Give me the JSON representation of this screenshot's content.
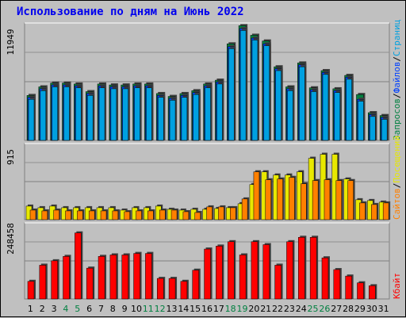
{
  "title": "Использование по дням на Июнь 2022",
  "colors": {
    "visits": "#00a0e0",
    "files": "#0040ff",
    "hits": "#008040",
    "sites": "#ff8000",
    "pages": "#e8e800",
    "kbytes": "#ff0000",
    "weekend_tick": "#008040",
    "normal_tick": "#000000"
  },
  "chart_data": [
    {
      "type": "bar",
      "title": "Использование по дням на Июнь 2022",
      "categories": [
        "1",
        "2",
        "3",
        "4",
        "5",
        "6",
        "7",
        "8",
        "9",
        "10",
        "11",
        "12",
        "13",
        "14",
        "15",
        "16",
        "17",
        "18",
        "19",
        "20",
        "21",
        "22",
        "23",
        "24",
        "25",
        "26",
        "27",
        "28",
        "29",
        "30",
        "31"
      ],
      "ymax_label": "11949",
      "ylim": [
        0,
        11949
      ],
      "legend_placement": "right",
      "legend": [
        "Запросов",
        "/",
        "Файлов",
        "/",
        "Страниц"
      ],
      "series": [
        {
          "name": "Запросов",
          "values": [
            4700,
            5600,
            6000,
            6000,
            5900,
            5100,
            5900,
            5800,
            5800,
            5900,
            5900,
            4900,
            4600,
            4900,
            5200,
            5900,
            6300,
            10100,
            12000,
            11000,
            10400,
            7700,
            5600,
            8100,
            5500,
            7300,
            5400,
            6800,
            4800,
            2900,
            2600
          ]
        },
        {
          "name": "Файлов",
          "values": [
            4500,
            5400,
            5800,
            5800,
            5700,
            4900,
            5700,
            5600,
            5600,
            5700,
            5700,
            4700,
            4400,
            4700,
            5000,
            5700,
            6100,
            9800,
            11700,
            10700,
            10100,
            7500,
            5400,
            7900,
            5300,
            7100,
            5200,
            6600,
            4300,
            2700,
            2400
          ]
        },
        {
          "name": "Страниц",
          "values": [
            4300,
            5200,
            5600,
            5600,
            5500,
            4700,
            5500,
            5400,
            5400,
            5500,
            5500,
            4500,
            4200,
            4500,
            4800,
            5500,
            5900,
            9600,
            11500,
            10500,
            9900,
            7300,
            5200,
            7700,
            5100,
            6900,
            5000,
            6400,
            4100,
            2500,
            2200
          ]
        }
      ]
    },
    {
      "type": "bar",
      "categories": [
        "1",
        "2",
        "3",
        "4",
        "5",
        "6",
        "7",
        "8",
        "9",
        "10",
        "11",
        "12",
        "13",
        "14",
        "15",
        "16",
        "17",
        "18",
        "19",
        "20",
        "21",
        "22",
        "23",
        "24",
        "25",
        "26",
        "27",
        "28",
        "29",
        "30",
        "31"
      ],
      "ymax_label": "915",
      "ylim": [
        0,
        915
      ],
      "legend_placement": "right",
      "legend": [
        "Сайтов",
        "/",
        "Посещений"
      ],
      "series": [
        {
          "name": "Посещений",
          "values": [
            170,
            150,
            170,
            150,
            150,
            150,
            150,
            150,
            120,
            150,
            150,
            170,
            130,
            120,
            130,
            130,
            140,
            150,
            200,
            440,
            600,
            560,
            560,
            600,
            770,
            820,
            820,
            510,
            250,
            240,
            220
          ]
        },
        {
          "name": "Сайтов",
          "values": [
            120,
            110,
            120,
            110,
            110,
            110,
            110,
            110,
            100,
            110,
            110,
            120,
            120,
            100,
            90,
            160,
            160,
            150,
            260,
            600,
            500,
            510,
            530,
            450,
            490,
            500,
            490,
            490,
            210,
            190,
            210
          ]
        }
      ]
    },
    {
      "type": "bar",
      "categories": [
        "1",
        "2",
        "3",
        "4",
        "5",
        "6",
        "7",
        "8",
        "9",
        "10",
        "11",
        "12",
        "13",
        "14",
        "15",
        "16",
        "17",
        "18",
        "19",
        "20",
        "21",
        "22",
        "23",
        "24",
        "25",
        "26",
        "27",
        "28",
        "29",
        "30",
        "31"
      ],
      "ymax_label": "248458",
      "ylim": [
        0,
        248458
      ],
      "legend_placement": "right",
      "legend": [
        "Кбайт"
      ],
      "series": [
        {
          "name": "Кбайт",
          "values": [
            60000,
            115000,
            130000,
            145000,
            225000,
            105000,
            145000,
            150000,
            150000,
            155000,
            155000,
            70000,
            70000,
            60000,
            98000,
            170000,
            180000,
            195000,
            150000,
            195000,
            185000,
            115000,
            195000,
            210000,
            210000,
            140000,
            100000,
            78000,
            55000,
            45000,
            0
          ]
        }
      ]
    }
  ]
}
